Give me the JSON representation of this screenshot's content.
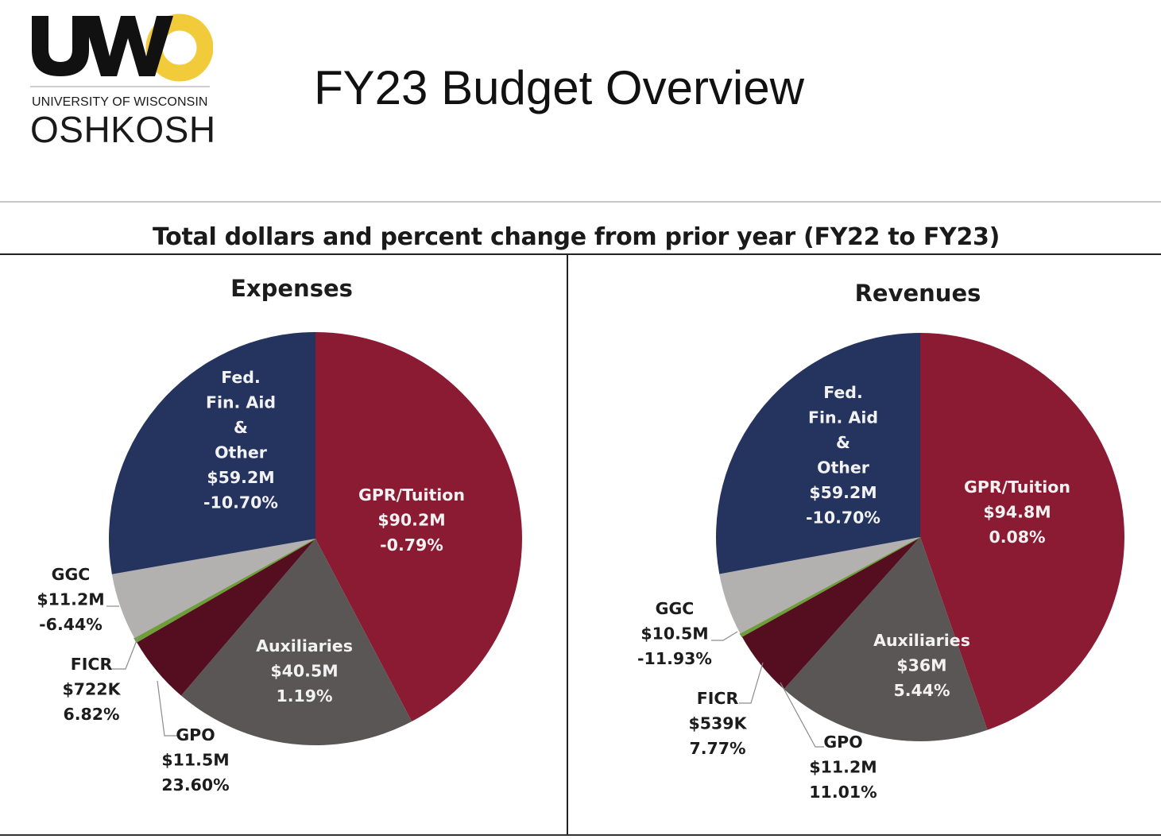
{
  "header": {
    "logo_sub": "UNIVERSITY OF WISCONSIN",
    "logo_name": "OSHKOSH",
    "title": "FY23 Budget Overview"
  },
  "chart_heading": "Total dollars and percent change from prior year (FY22 to FY23)",
  "colors": {
    "gpr": "#8b1a33",
    "auxiliaries": "#5b5656",
    "gpo": "#540e1f",
    "ficr": "#6e9e3a",
    "ggc": "#b3b0b0",
    "fed": "#24345f",
    "label_light": "#f2f2f2",
    "label_dark": "#1c1c1c"
  },
  "chart_data": [
    {
      "type": "pie",
      "title": "Expenses",
      "slices": [
        {
          "key": "gpr",
          "name": "GPR/Tuition",
          "value": 90.2,
          "amount": "$90.2M",
          "change": "-0.79%",
          "lines": [
            "GPR/Tuition",
            "$90.2M",
            "-0.79%"
          ]
        },
        {
          "key": "auxiliaries",
          "name": "Auxiliaries",
          "value": 40.5,
          "amount": "$40.5M",
          "change": "1.19%",
          "lines": [
            "Auxiliaries",
            "$40.5M",
            "1.19%"
          ]
        },
        {
          "key": "gpo",
          "name": "GPO",
          "value": 11.5,
          "amount": "$11.5M",
          "change": "23.60%",
          "lines": [
            "GPO",
            "$11.5M",
            "23.60%"
          ]
        },
        {
          "key": "ficr",
          "name": "FICR",
          "value": 0.722,
          "amount": "$722K",
          "change": "6.82%",
          "lines": [
            "FICR",
            "$722K",
            "6.82%"
          ]
        },
        {
          "key": "ggc",
          "name": "GGC",
          "value": 11.2,
          "amount": "$11.2M",
          "change": "-6.44%",
          "lines": [
            "GGC",
            "$11.2M",
            "-6.44%"
          ]
        },
        {
          "key": "fed",
          "name": "Fed. Fin. Aid & Other",
          "value": 59.2,
          "amount": "$59.2M",
          "change": "-10.70%",
          "lines": [
            "Fed.",
            "Fin. Aid",
            "&",
            "Other",
            "$59.2M",
            "-10.70%"
          ]
        }
      ]
    },
    {
      "type": "pie",
      "title": "Revenues",
      "slices": [
        {
          "key": "gpr",
          "name": "GPR/Tuition",
          "value": 94.8,
          "amount": "$94.8M",
          "change": "0.08%",
          "lines": [
            "GPR/Tuition",
            "$94.8M",
            "0.08%"
          ]
        },
        {
          "key": "auxiliaries",
          "name": "Auxiliaries",
          "value": 36,
          "amount": "$36M",
          "change": "5.44%",
          "lines": [
            "Auxiliaries",
            "$36M",
            "5.44%"
          ]
        },
        {
          "key": "gpo",
          "name": "GPO",
          "value": 11.2,
          "amount": "$11.2M",
          "change": "11.01%",
          "lines": [
            "GPO",
            "$11.2M",
            "11.01%"
          ]
        },
        {
          "key": "ficr",
          "name": "FICR",
          "value": 0.539,
          "amount": "$539K",
          "change": "7.77%",
          "lines": [
            "FICR",
            "$539K",
            "7.77%"
          ]
        },
        {
          "key": "ggc",
          "name": "GGC",
          "value": 10.5,
          "amount": "$10.5M",
          "change": "-11.93%",
          "lines": [
            "GGC",
            "$10.5M",
            "-11.93%"
          ]
        },
        {
          "key": "fed",
          "name": "Fed. Fin. Aid & Other",
          "value": 59.2,
          "amount": "$59.2M",
          "change": "-10.70%",
          "lines": [
            "Fed.",
            "Fin. Aid",
            "&",
            "Other",
            "$59.2M",
            "-10.70%"
          ]
        }
      ]
    }
  ]
}
